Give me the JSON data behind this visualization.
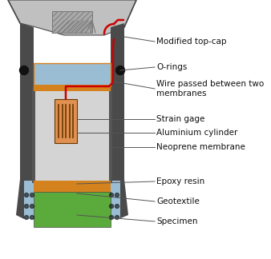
{
  "bg_color": "#ffffff",
  "gray_dark": "#4a4a4a",
  "gray_mid": "#888888",
  "gray_light": "#c0c0c0",
  "gray_lighter": "#d4d4d4",
  "blue_light": "#9bbdd4",
  "blue_lighter": "#b8d0e0",
  "orange_stripe": "#d4821e",
  "green_specimen": "#5aaa3c",
  "strain_gage_bg": "#e09050",
  "strain_gage_lines": "#6b3800",
  "red_wire": "#cc0000",
  "black": "#111111",
  "labels": [
    [
      "Modified top-cap",
      175,
      265,
      200,
      270
    ],
    [
      "O-rings",
      175,
      220,
      200,
      222
    ],
    [
      "Wire passed between two\nmembranes",
      175,
      200,
      200,
      198
    ],
    [
      "Strain gage",
      175,
      163,
      200,
      163
    ],
    [
      "Aluminium cylinder",
      175,
      148,
      200,
      148
    ],
    [
      "Neoprene membrane",
      175,
      132,
      200,
      132
    ],
    [
      "Epoxy resin",
      175,
      88,
      200,
      88
    ],
    [
      "Geotextile",
      175,
      60,
      200,
      60
    ],
    [
      "Specimen",
      175,
      30,
      200,
      30
    ]
  ]
}
